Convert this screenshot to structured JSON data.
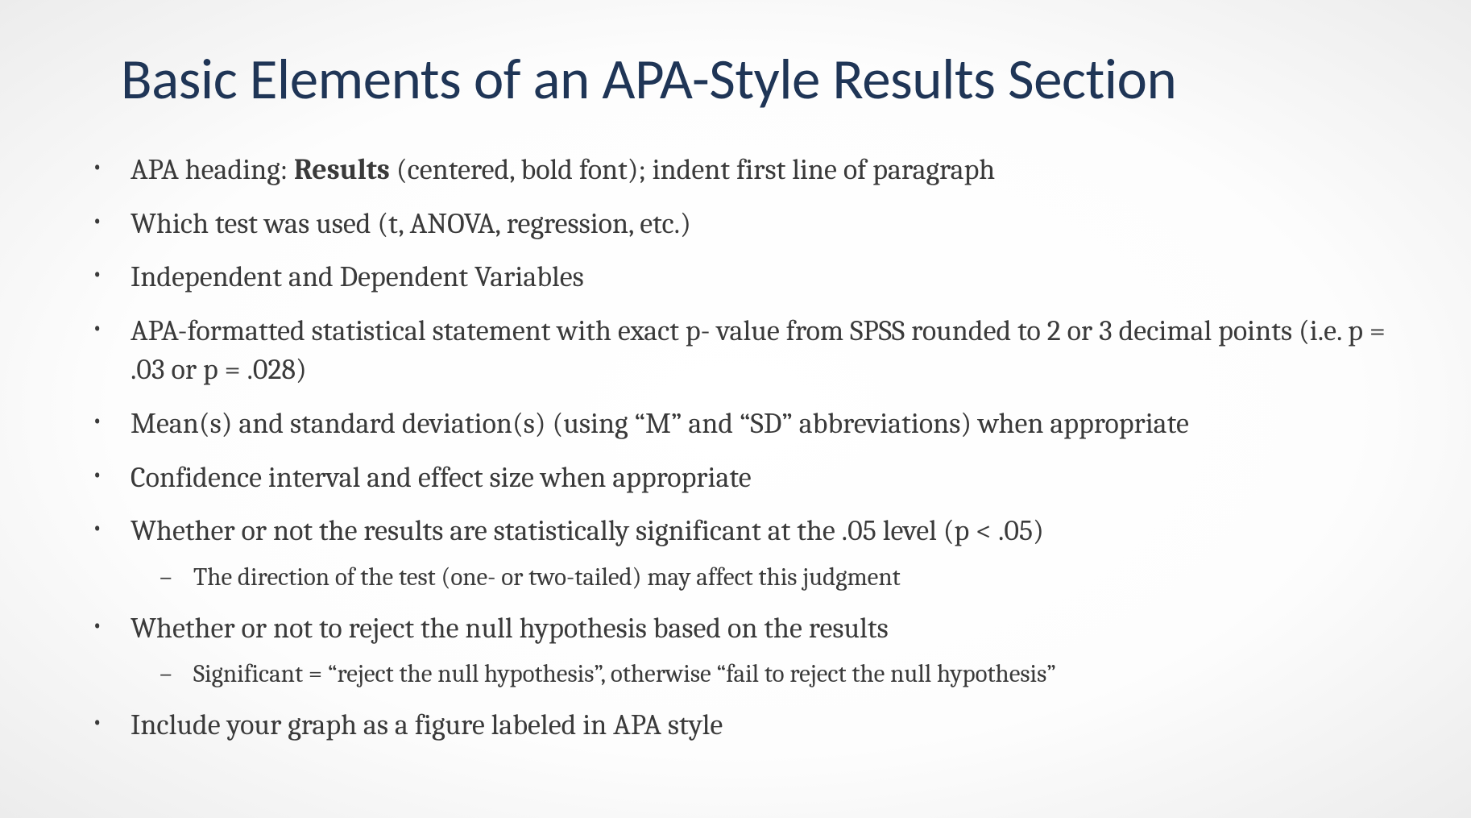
{
  "slide": {
    "title": "Basic Elements of an APA-Style Results Section",
    "title_color": "#1f3556",
    "title_fontsize": 71,
    "title_font": "Calibri",
    "body_color": "#3a3a3a",
    "body_fontsize_level1": 36,
    "body_fontsize_level2": 31,
    "body_font": "Cambria",
    "background": "radial-gradient white to light-grey",
    "bullets": [
      {
        "text_before": "APA heading: ",
        "bold": "Results",
        "text_after": " (centered, bold font); indent first line of paragraph"
      },
      {
        "text": "Which test was used (t, ANOVA, regression, etc.)"
      },
      {
        "text": "Independent and Dependent Variables"
      },
      {
        "text": "APA-formatted statistical statement with exact p- value from SPSS rounded to 2 or 3 decimal points (i.e. p = .03 or p = .028)"
      },
      {
        "text": "Mean(s) and standard deviation(s) (using “M” and “SD” abbreviations) when appropriate"
      },
      {
        "text": "Confidence interval and effect size when appropriate"
      },
      {
        "text": "Whether or not the results are statistically significant at the .05 level (p < .05)",
        "sub": [
          {
            "text": "The direction of the test (one- or two-tailed) may affect this judgment"
          }
        ]
      },
      {
        "text": "Whether or not to reject the null hypothesis based on the results",
        "sub": [
          {
            "text": "Significant = “reject the null hypothesis”, otherwise “fail to reject the null hypothesis”"
          }
        ]
      },
      {
        "text": "Include your graph as a figure labeled in APA style"
      }
    ]
  }
}
